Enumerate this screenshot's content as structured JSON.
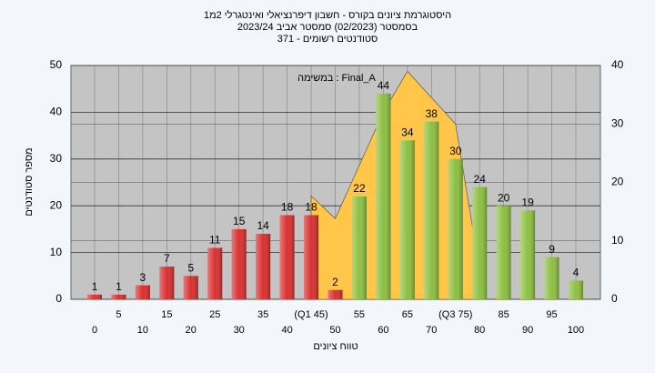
{
  "chart_data": {
    "type": "bar",
    "title": "היסטוגרמת ציונים בקורס - חשבון דיפרנציאלי ואינטגרלי 2מ1",
    "subtitle": "בסמסטר  (02/2023)  סמסטר אביב 2023/24",
    "subtitle2": "סטודנטים רשומים - 371",
    "annotation": "במשימה : Final_A",
    "y_label": "מספר סטודנטים",
    "x_label": "טווח ציונים",
    "categories": [
      "0",
      "5",
      "10",
      "15",
      "20",
      "25",
      "30",
      "35",
      "40",
      "(Q1 45)",
      "50",
      "55",
      "60",
      "65",
      "70",
      "(Q3 75)",
      "80",
      "85",
      "90",
      "95",
      "100"
    ],
    "values": [
      1,
      1,
      3,
      7,
      5,
      11,
      15,
      14,
      18,
      18,
      2,
      22,
      44,
      34,
      38,
      30,
      24,
      20,
      19,
      9,
      4
    ],
    "bar_colors": [
      "#d93030",
      "#d93030",
      "#d93030",
      "#d93030",
      "#d93030",
      "#d93030",
      "#d93030",
      "#d93030",
      "#d93030",
      "#d93030",
      "#d93030",
      "#8cc040",
      "#8cc040",
      "#8cc040",
      "#8cc040",
      "#8cc040",
      "#8cc040",
      "#8cc040",
      "#8cc040",
      "#8cc040",
      "#8cc040"
    ],
    "area": {
      "color": "#ffc64a",
      "x": [
        45,
        50,
        60,
        65,
        75,
        79
      ],
      "values": [
        17.7,
        13.8,
        32,
        39,
        30,
        10
      ]
    },
    "ylim": [
      0,
      50
    ],
    "yticks": [
      0,
      10,
      20,
      30,
      40,
      50
    ],
    "y2lim": [
      0,
      40
    ],
    "y2ticks": [
      0,
      10,
      20,
      30,
      40
    ],
    "grid": true
  }
}
